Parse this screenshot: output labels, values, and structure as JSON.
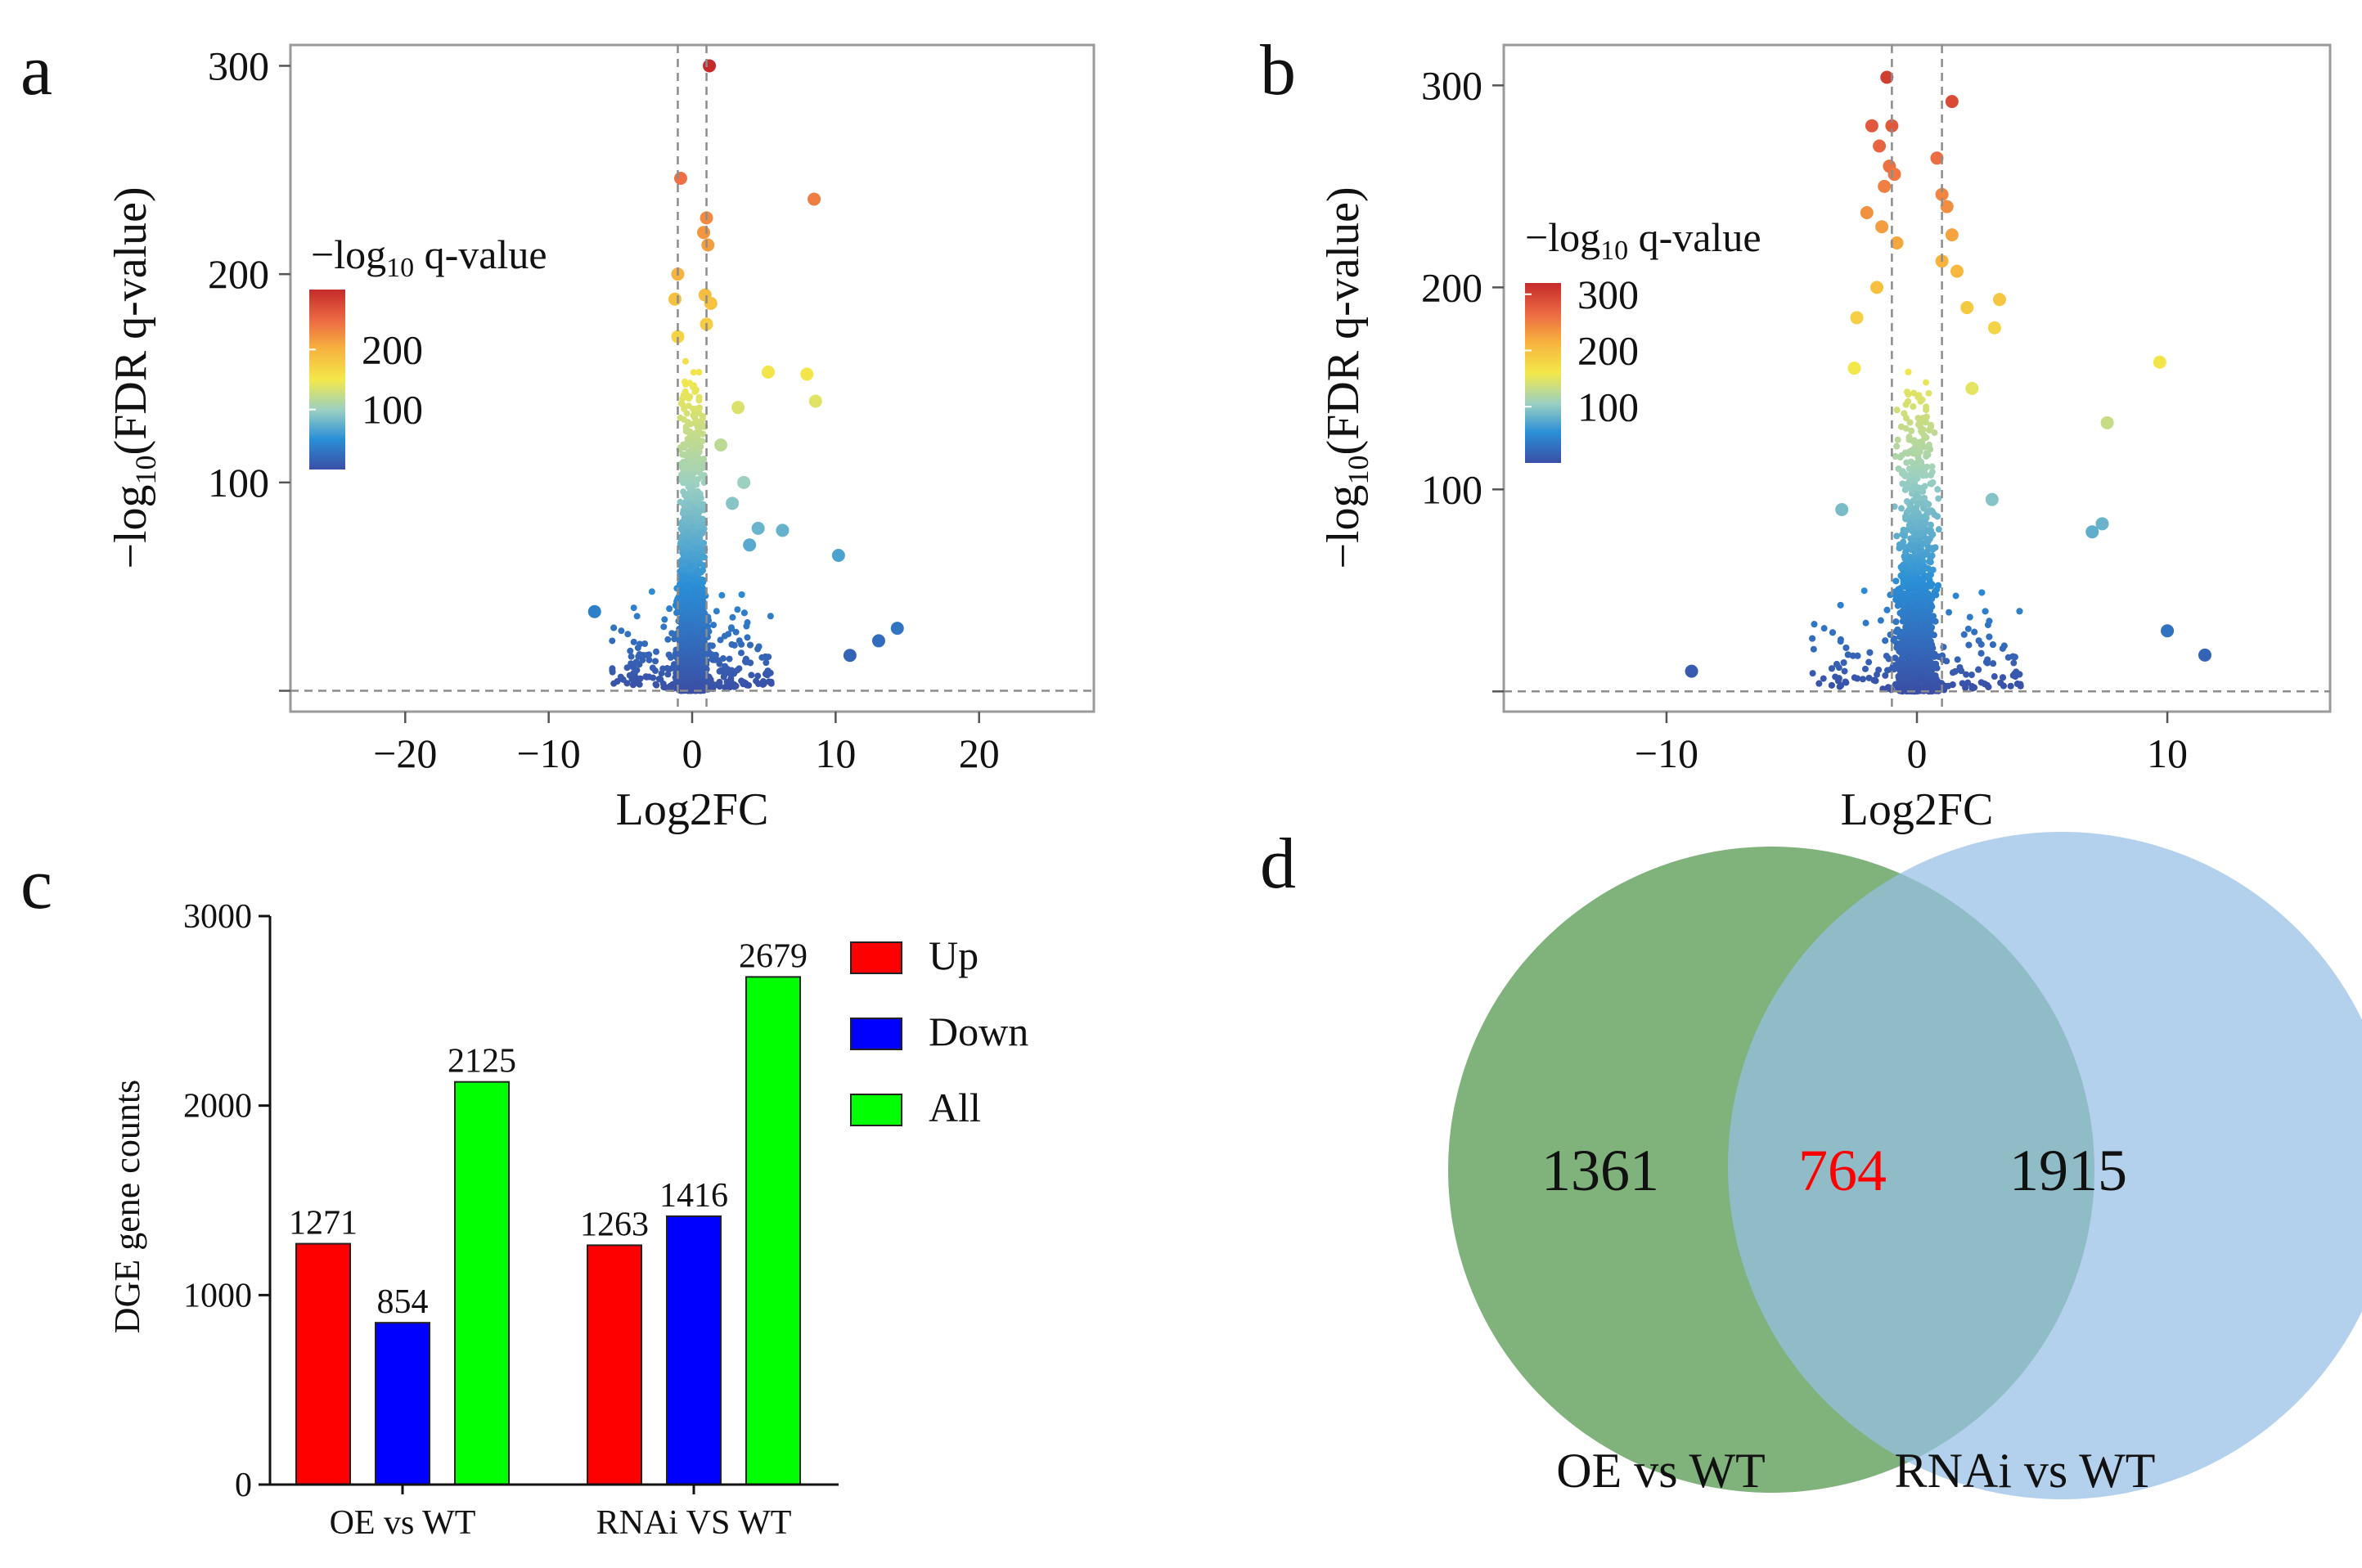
{
  "panels": {
    "a": "a",
    "b": "b",
    "c": "c",
    "d": "d"
  },
  "chart_data": [
    {
      "id": "a",
      "type": "scatter",
      "subtype": "volcano",
      "xlabel": "Log2FC",
      "ylabel_prefix": "−log",
      "ylabel_sub": "10",
      "ylabel_suffix": "(FDR q-value)",
      "xlim": [
        -28,
        28
      ],
      "ylim": [
        -10,
        310
      ],
      "xticks": [
        -20,
        -10,
        0,
        10,
        20
      ],
      "xtick_labels": [
        "−20",
        "−10",
        "0",
        "10",
        "20"
      ],
      "yticks": [
        100,
        200,
        300
      ],
      "ytick_labels": [
        "100",
        "200",
        "300"
      ],
      "fc_threshold": 1,
      "q_threshold_line": 0,
      "colorbar": {
        "title_prefix": "−log",
        "title_sub": "10",
        "title_suffix": " q-value",
        "range": [
          0,
          300
        ],
        "ticks": [
          100,
          200
        ],
        "tick_labels": [
          "100",
          "200"
        ]
      },
      "highlight_points": [
        {
          "x": 1.2,
          "y": 300
        },
        {
          "x": -0.8,
          "y": 246
        },
        {
          "x": 8.5,
          "y": 236
        },
        {
          "x": 1.0,
          "y": 227
        },
        {
          "x": 0.8,
          "y": 220
        },
        {
          "x": 1.1,
          "y": 214
        },
        {
          "x": -1.0,
          "y": 200
        },
        {
          "x": 0.9,
          "y": 190
        },
        {
          "x": 1.3,
          "y": 186
        },
        {
          "x": -1.2,
          "y": 188
        },
        {
          "x": 1.0,
          "y": 176
        },
        {
          "x": -1.0,
          "y": 170
        },
        {
          "x": 5.3,
          "y": 153
        },
        {
          "x": 8.0,
          "y": 152
        },
        {
          "x": 8.6,
          "y": 139
        },
        {
          "x": 3.2,
          "y": 136
        },
        {
          "x": 2.0,
          "y": 118
        },
        {
          "x": 3.6,
          "y": 100
        },
        {
          "x": 6.3,
          "y": 77
        },
        {
          "x": 4.6,
          "y": 78
        },
        {
          "x": 10.2,
          "y": 65
        },
        {
          "x": 4.0,
          "y": 70
        },
        {
          "x": 2.8,
          "y": 90
        },
        {
          "x": -6.8,
          "y": 38
        },
        {
          "x": 14.3,
          "y": 30
        },
        {
          "x": 13.0,
          "y": 24
        },
        {
          "x": 11.0,
          "y": 17
        }
      ]
    },
    {
      "id": "b",
      "type": "scatter",
      "subtype": "volcano",
      "xlabel": "Log2FC",
      "ylabel_prefix": "−log",
      "ylabel_sub": "10",
      "ylabel_suffix": "(FDR q-value)",
      "xlim": [
        -16.5,
        16.5
      ],
      "ylim": [
        -10,
        320
      ],
      "xticks": [
        -10,
        0,
        10
      ],
      "xtick_labels": [
        "−10",
        "0",
        "10"
      ],
      "yticks": [
        100,
        200,
        300
      ],
      "ytick_labels": [
        "100",
        "200",
        "300"
      ],
      "fc_threshold": 1,
      "q_threshold_line": 0,
      "colorbar": {
        "title_prefix": "−log",
        "title_sub": "10",
        "title_suffix": " q-value",
        "range": [
          0,
          320
        ],
        "ticks": [
          100,
          200,
          300
        ],
        "tick_labels": [
          "100",
          "200",
          "300"
        ]
      },
      "highlight_points": [
        {
          "x": -1.2,
          "y": 304
        },
        {
          "x": 1.4,
          "y": 292
        },
        {
          "x": -1.8,
          "y": 280
        },
        {
          "x": -1.0,
          "y": 280
        },
        {
          "x": -1.5,
          "y": 270
        },
        {
          "x": 0.8,
          "y": 264
        },
        {
          "x": -1.1,
          "y": 260
        },
        {
          "x": -0.9,
          "y": 256
        },
        {
          "x": -1.3,
          "y": 250
        },
        {
          "x": 1.0,
          "y": 246
        },
        {
          "x": 1.2,
          "y": 240
        },
        {
          "x": -2.0,
          "y": 237
        },
        {
          "x": -1.4,
          "y": 230
        },
        {
          "x": 1.4,
          "y": 226
        },
        {
          "x": -0.8,
          "y": 222
        },
        {
          "x": 1.0,
          "y": 213
        },
        {
          "x": 1.6,
          "y": 208
        },
        {
          "x": 3.3,
          "y": 194
        },
        {
          "x": 3.1,
          "y": 180
        },
        {
          "x": 2.0,
          "y": 190
        },
        {
          "x": -1.6,
          "y": 200
        },
        {
          "x": -2.4,
          "y": 185
        },
        {
          "x": 9.7,
          "y": 163
        },
        {
          "x": 7.6,
          "y": 133
        },
        {
          "x": -2.5,
          "y": 160
        },
        {
          "x": 2.2,
          "y": 150
        },
        {
          "x": 7.4,
          "y": 83
        },
        {
          "x": 7.0,
          "y": 79
        },
        {
          "x": 10.0,
          "y": 30
        },
        {
          "x": 11.5,
          "y": 18
        },
        {
          "x": -9.0,
          "y": 10
        },
        {
          "x": -3.0,
          "y": 90
        },
        {
          "x": 3.0,
          "y": 95
        }
      ]
    },
    {
      "id": "c",
      "type": "bar",
      "ylabel": "DGE gene counts",
      "categories": [
        "OE vs WT",
        "RNAi VS WT"
      ],
      "series": [
        {
          "name": "Up",
          "color": "#ff0000",
          "values": [
            1271,
            1263
          ]
        },
        {
          "name": "Down",
          "color": "#0000ff",
          "values": [
            854,
            1416
          ]
        },
        {
          "name": "All",
          "color": "#00ff00",
          "values": [
            2125,
            2679
          ]
        }
      ],
      "ylim": [
        0,
        3000
      ],
      "yticks": [
        0,
        1000,
        2000,
        3000
      ],
      "ytick_labels": [
        "0",
        "1000",
        "2000",
        "3000"
      ],
      "legend_position": "top-right"
    },
    {
      "id": "d",
      "type": "venn",
      "sets": [
        {
          "name": "OE vs WT",
          "only": "1361",
          "color": "#6aa465"
        },
        {
          "name": "RNAi vs WT",
          "only": "1915",
          "color": "#95bfe4"
        }
      ],
      "intersection": "764",
      "intersection_color": "#ff0000"
    }
  ]
}
